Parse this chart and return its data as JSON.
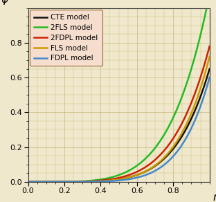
{
  "xlabel": "r",
  "ylabel": "φ",
  "xlim": [
    0.0,
    1.0
  ],
  "ylim": [
    0.0,
    1.0
  ],
  "xticks": [
    0.0,
    0.2,
    0.4,
    0.6,
    0.8
  ],
  "yticks": [
    0.0,
    0.2,
    0.4,
    0.6,
    0.8
  ],
  "background_color": "#f0e8cc",
  "plot_bg": "#f0e8cc",
  "legend_bg": "#f5dece",
  "legend_edge": "#996633",
  "grid_color": "#c8b87a",
  "curves": [
    {
      "label": "CTE model",
      "color": "#111111",
      "lw": 1.8,
      "a": 0.65,
      "b": 5.5
    },
    {
      "label": "2FLS model",
      "color": "#22bb22",
      "lw": 1.8,
      "a": 1.08,
      "b": 4.8
    },
    {
      "label": "2FDPL model",
      "color": "#cc2200",
      "lw": 1.8,
      "a": 0.78,
      "b": 5.1
    },
    {
      "label": "FLS model",
      "color": "#cc9900",
      "lw": 1.8,
      "a": 0.72,
      "b": 5.7
    },
    {
      "label": "FDPL model",
      "color": "#4488cc",
      "lw": 1.8,
      "a": 0.6,
      "b": 6.3
    }
  ]
}
